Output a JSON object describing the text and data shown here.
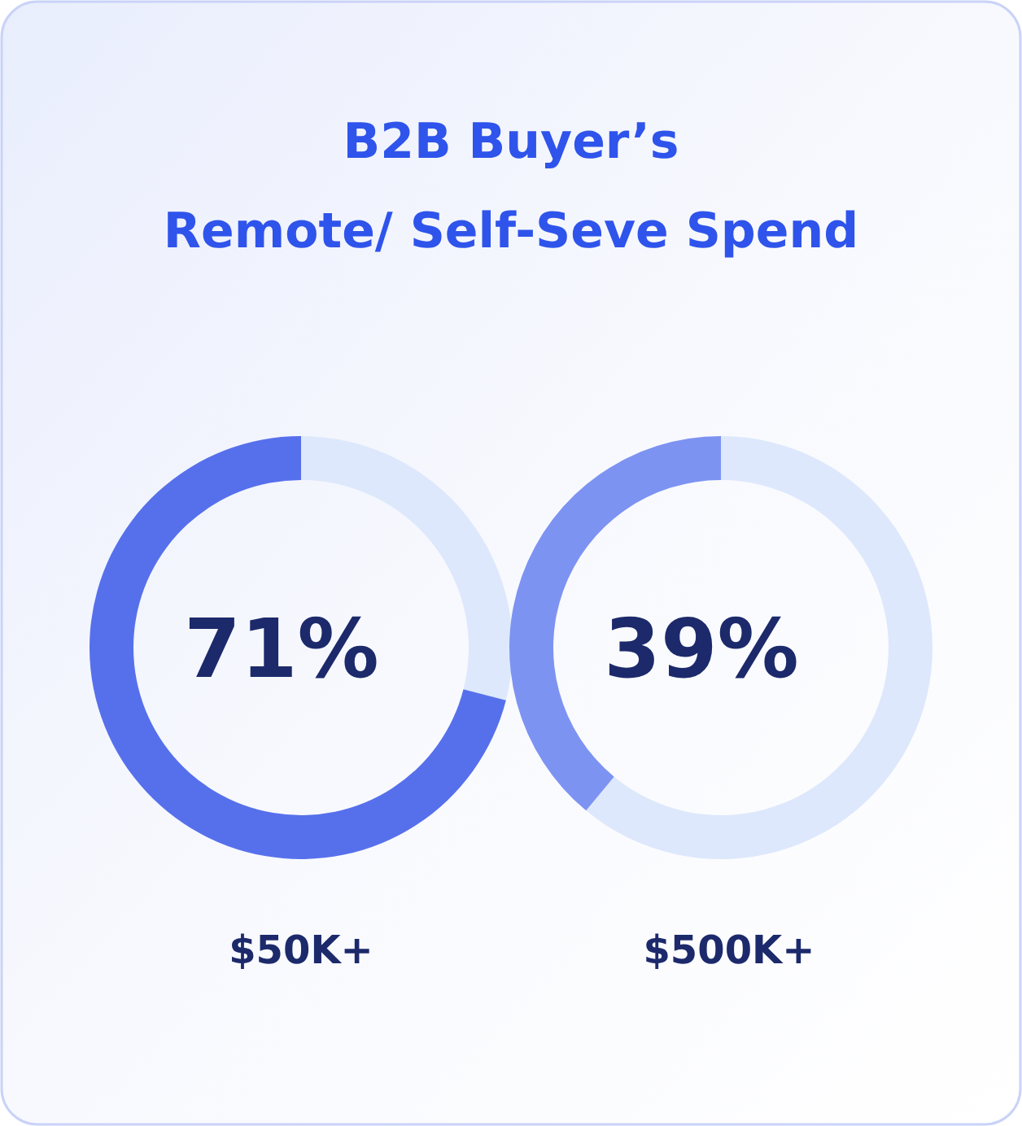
{
  "chart_data": [
    {
      "type": "donut",
      "title": "B2B Buyer’s",
      "subtitle": "Remote/ Self-Seve Spend",
      "categories": [
        null,
        null
      ],
      "values": [
        29,
        71
      ],
      "colors": [
        "#dde8fc",
        "#5670ec"
      ],
      "value_labels": [
        null,
        "71%"
      ],
      "xlabel": "$50K+"
    },
    {
      "type": "donut",
      "categories": [
        null,
        null
      ],
      "values": [
        61,
        39
      ],
      "colors": [
        "#dde8fc",
        "#7d93f2"
      ],
      "value_labels": [
        null,
        "39%"
      ],
      "xlabel": "$500K+"
    }
  ]
}
